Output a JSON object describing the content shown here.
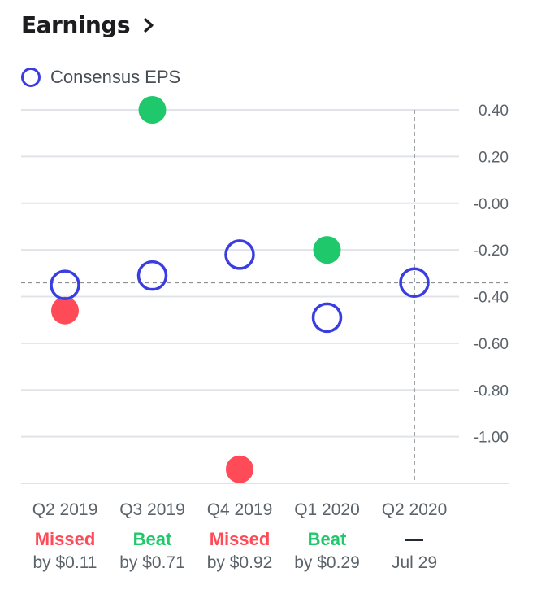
{
  "header": {
    "title": "Earnings",
    "chevron_icon": "chevron-right-icon"
  },
  "legend": {
    "label": "Consensus EPS",
    "icon": "open-circle-icon"
  },
  "colors": {
    "consensus": "#3a3ee0",
    "beat": "#1fc86a",
    "missed": "#ff4b57",
    "grid": "#e0e4e9",
    "guide": "#8a8f94"
  },
  "chart_data": {
    "type": "scatter",
    "categories": [
      "Q2 2019",
      "Q3 2019",
      "Q4 2019",
      "Q1 2020",
      "Q2 2020"
    ],
    "series": [
      {
        "name": "Consensus EPS",
        "values": [
          -0.35,
          -0.31,
          -0.22,
          -0.49,
          -0.34
        ]
      },
      {
        "values": [
          -0.46,
          0.4,
          -1.14,
          -0.2,
          null
        ]
      }
    ],
    "result_labels": [
      "Missed",
      "Beat",
      "Missed",
      "Beat",
      "—"
    ],
    "result_details": [
      "by $0.11",
      "by $0.71",
      "by $0.92",
      "by $0.29",
      "Jul 29"
    ],
    "result_types": [
      "missed",
      "beat",
      "missed",
      "beat",
      "upcoming"
    ],
    "yticks": [
      0.4,
      0.2,
      0.0,
      -0.2,
      -0.4,
      -0.6,
      -0.8,
      -1.0
    ],
    "ytick_labels": [
      "0.40",
      "0.20",
      "-0.00",
      "-0.20",
      "-0.40",
      "-0.60",
      "-0.80",
      "-1.00"
    ],
    "ylim": [
      -1.2,
      0.4
    ],
    "reference_value": -0.34,
    "grid": true,
    "legend_position": "top-left"
  }
}
